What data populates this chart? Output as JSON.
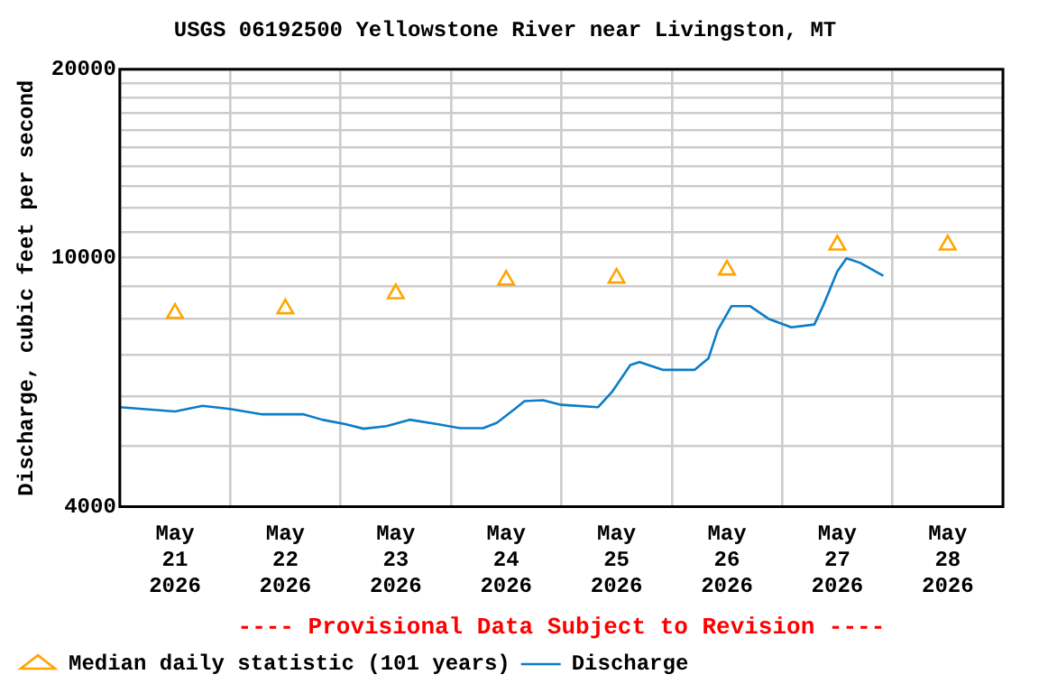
{
  "chart_data": {
    "type": "line",
    "title": "USGS 06192500 Yellowstone River near Livingston, MT",
    "ylabel": "Discharge, cubic feet per second",
    "annotations": [
      "---- Provisional Data Subject to Revision ----"
    ],
    "log": "y",
    "grid": true,
    "legend": "bottom",
    "xlim": [
      "2026-05-21T00:00",
      "2026-05-29T00:00"
    ],
    "xticks": [
      {
        "value": "2026-05-21T00:00",
        "label": null
      },
      {
        "value": "2026-05-21T12:00",
        "label": "May 21 2026"
      },
      {
        "value": "2026-05-22T00:00",
        "label": null
      },
      {
        "value": "2026-05-22T12:00",
        "label": "May 22 2026"
      },
      {
        "value": "2026-05-23T00:00",
        "label": null
      },
      {
        "value": "2026-05-23T12:00",
        "label": "May 23 2026"
      },
      {
        "value": "2026-05-24T00:00",
        "label": null
      },
      {
        "value": "2026-05-24T12:00",
        "label": "May 24 2026"
      },
      {
        "value": "2026-05-25T00:00",
        "label": null
      },
      {
        "value": "2026-05-25T12:00",
        "label": "May 25 2026"
      },
      {
        "value": "2026-05-26T00:00",
        "label": null
      },
      {
        "value": "2026-05-26T12:00",
        "label": "May 26 2026"
      },
      {
        "value": "2026-05-27T00:00",
        "label": null
      },
      {
        "value": "2026-05-27T12:00",
        "label": "May 27 2026"
      },
      {
        "value": "2026-05-28T00:00",
        "label": null
      },
      {
        "value": "2026-05-28T12:00",
        "label": "May 28 2026"
      },
      {
        "value": "2026-05-29T00:00",
        "label": null
      }
    ],
    "ylim": [
      4000,
      20000
    ],
    "yticks": [
      4000,
      {
        "value": 5000,
        "label": null
      },
      {
        "value": 6000,
        "label": null
      },
      {
        "value": 7000,
        "label": null
      },
      {
        "value": 8000,
        "label": null
      },
      {
        "value": 9000,
        "label": null
      },
      10000,
      {
        "value": 11000,
        "label": null
      },
      {
        "value": 12000,
        "label": null
      },
      {
        "value": 13000,
        "label": null
      },
      {
        "value": 14000,
        "label": null
      },
      {
        "value": 15000,
        "label": null
      },
      {
        "value": 16000,
        "label": null
      },
      {
        "value": 17000,
        "label": null
      },
      {
        "value": 18000,
        "label": null
      },
      {
        "value": 19000,
        "label": null
      },
      20000
    ],
    "series": [
      {
        "name": "Median daily statistic (101 years)",
        "type": "scatter",
        "marker": "triangle",
        "color": "#ffa500",
        "x": [
          "2026-05-21T12:00",
          "2026-05-22T12:00",
          "2026-05-23T12:00",
          "2026-05-24T12:00",
          "2026-05-25T12:00",
          "2026-05-26T12:00",
          "2026-05-27T12:00",
          "2026-05-28T12:00"
        ],
        "values": [
          8150,
          8290,
          8760,
          9210,
          9280,
          9560,
          10480,
          10480
        ]
      },
      {
        "name": "Discharge",
        "type": "line",
        "marker": "none",
        "line_style": "solid",
        "color": "#0a7dc8",
        "x": [
          "2026-05-21T00:00",
          "2026-05-21T12:00",
          "2026-05-21T18:00",
          "2026-05-22T00:00",
          "2026-05-22T07:00",
          "2026-05-22T16:00",
          "2026-05-22T20:00",
          "2026-05-23T01:00",
          "2026-05-23T05:00",
          "2026-05-23T10:00",
          "2026-05-23T15:00",
          "2026-05-23T21:00",
          "2026-05-24T02:00",
          "2026-05-24T07:00",
          "2026-05-24T10:00",
          "2026-05-24T14:00",
          "2026-05-24T16:00",
          "2026-05-24T20:00",
          "2026-05-25T00:00",
          "2026-05-25T08:00",
          "2026-05-25T11:00",
          "2026-05-25T15:00",
          "2026-05-25T17:00",
          "2026-05-25T22:00",
          "2026-05-26T05:00",
          "2026-05-26T08:00",
          "2026-05-26T10:00",
          "2026-05-26T13:00",
          "2026-05-26T17:00",
          "2026-05-26T21:00",
          "2026-05-27T02:00",
          "2026-05-27T07:00",
          "2026-05-27T09:00",
          "2026-05-27T12:00",
          "2026-05-27T14:00",
          "2026-05-27T17:00",
          "2026-05-27T22:00"
        ],
        "values": [
          5770,
          5680,
          5800,
          5730,
          5620,
          5620,
          5510,
          5420,
          5330,
          5380,
          5510,
          5420,
          5340,
          5340,
          5450,
          5740,
          5900,
          5920,
          5820,
          5770,
          6100,
          6740,
          6810,
          6620,
          6620,
          6910,
          7660,
          8370,
          8370,
          7990,
          7740,
          7820,
          8410,
          9510,
          9980,
          9810,
          9360
        ]
      }
    ]
  }
}
